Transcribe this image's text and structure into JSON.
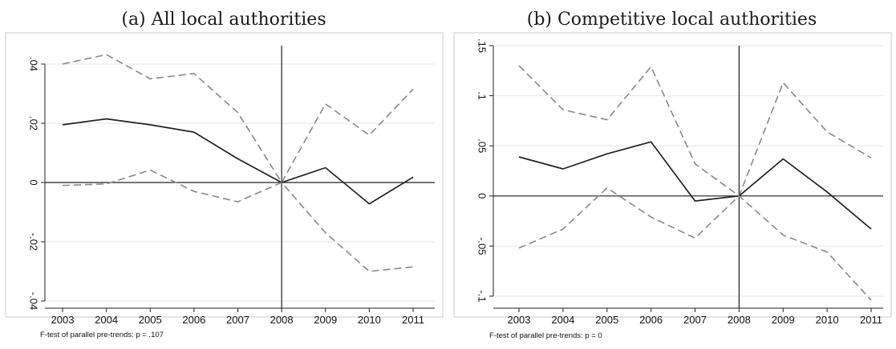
{
  "chart_data": [
    {
      "type": "line",
      "title": "(a) All local authorities",
      "x": [
        2003,
        2004,
        2005,
        2006,
        2007,
        2008,
        2009,
        2010,
        2011
      ],
      "xlim": [
        2003,
        2011
      ],
      "ylim": [
        -0.04,
        0.04
      ],
      "yticks": [
        0.04,
        0.02,
        0,
        -0.02,
        -0.04
      ],
      "ytick_labels": [
        ".04",
        ".02",
        "0",
        "-.02",
        "-.04"
      ],
      "reference_lines": {
        "y": 0,
        "x": 2008
      },
      "grid": true,
      "series": [
        {
          "role": "upper-ci",
          "style": "dashed",
          "values": [
            0.04,
            0.0432,
            0.035,
            0.0368,
            0.0236,
            0.0,
            0.0265,
            0.016,
            0.0315
          ]
        },
        {
          "role": "estimate",
          "style": "solid",
          "values": [
            0.0195,
            0.0215,
            0.0195,
            0.017,
            0.008,
            0.0,
            0.005,
            -0.0072,
            0.0018
          ]
        },
        {
          "role": "lower-ci",
          "style": "dashed",
          "values": [
            -0.001,
            -0.0005,
            0.0042,
            -0.003,
            -0.0065,
            0.0,
            -0.017,
            -0.03,
            -0.0285
          ]
        }
      ],
      "note": "F-test of parallel pre-trends: p = .107"
    },
    {
      "type": "line",
      "title": "(b) Competitive local authorities",
      "x": [
        2003,
        2004,
        2005,
        2006,
        2007,
        2008,
        2009,
        2010,
        2011
      ],
      "xlim": [
        2003,
        2011
      ],
      "ylim": [
        -0.1,
        0.15
      ],
      "yticks": [
        0.15,
        0.1,
        0.05,
        0,
        -0.05,
        -0.1
      ],
      "ytick_labels": [
        ".15",
        ".1",
        ".05",
        "0",
        "-.05",
        "-.1"
      ],
      "reference_lines": {
        "y": 0,
        "x": 2008
      },
      "grid": true,
      "series": [
        {
          "role": "upper-ci",
          "style": "dashed",
          "values": [
            0.13,
            0.086,
            0.076,
            0.129,
            0.032,
            0.0,
            0.113,
            0.064,
            0.038
          ]
        },
        {
          "role": "estimate",
          "style": "solid",
          "values": [
            0.039,
            0.027,
            0.042,
            0.054,
            -0.005,
            0.0,
            0.037,
            0.004,
            -0.033
          ]
        },
        {
          "role": "lower-ci",
          "style": "dashed",
          "values": [
            -0.052,
            -0.033,
            0.008,
            -0.021,
            -0.042,
            0.0,
            -0.039,
            -0.056,
            -0.104
          ]
        }
      ],
      "note": "F-test of parallel pre-trends: p = 0"
    }
  ]
}
